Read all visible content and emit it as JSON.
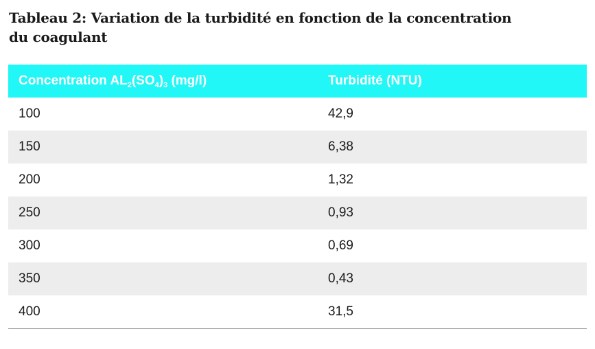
{
  "title": {
    "line1": "Tableau 2: Variation de la turbidité en fonction de la concentration",
    "line2": "du coagulant"
  },
  "colors": {
    "header_background": "#22f7f7",
    "header_text": "#ffffff",
    "stripe_background": "#ededed"
  },
  "table": {
    "headers": {
      "concentration_prefix": "Concentration AL",
      "sub1": "2",
      "mid": "(SO",
      "sub2": "4",
      "close": ")",
      "sub3": "3",
      "concentration_suffix": " (mg/l)",
      "turbidity": "Turbidité (NTU)"
    },
    "rows": [
      {
        "concentration": "100",
        "turbidity": "42,9"
      },
      {
        "concentration": "150",
        "turbidity": "6,38"
      },
      {
        "concentration": "200",
        "turbidity": "1,32"
      },
      {
        "concentration": "250",
        "turbidity": "0,93"
      },
      {
        "concentration": "300",
        "turbidity": "0,69"
      },
      {
        "concentration": "350",
        "turbidity": "0,43"
      },
      {
        "concentration": "400",
        "turbidity": "31,5"
      }
    ]
  }
}
